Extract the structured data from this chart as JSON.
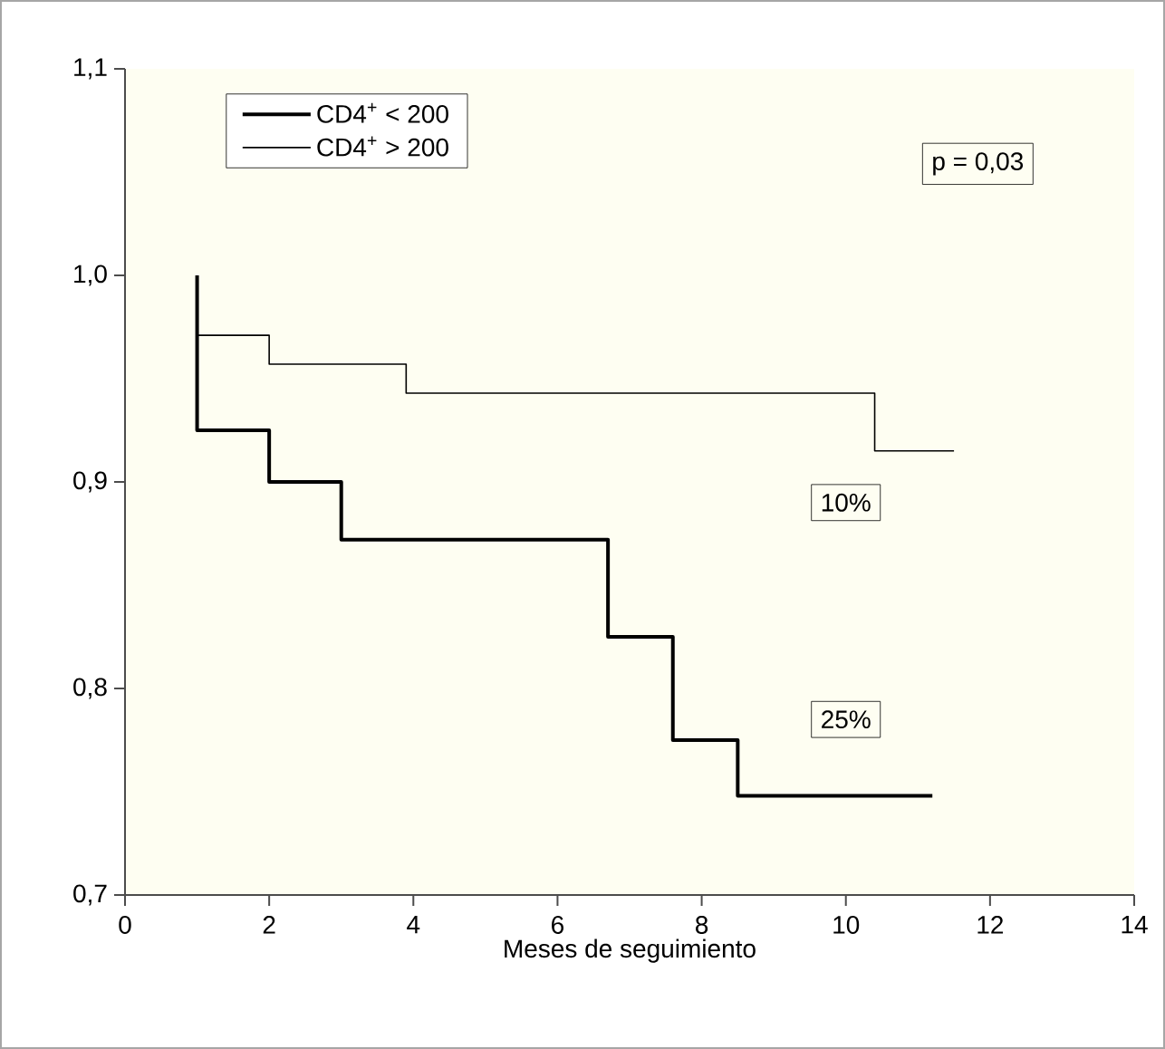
{
  "chart_data": {
    "type": "step",
    "xlabel": "Meses de seguimiento",
    "xlim": [
      0,
      14
    ],
    "ylim": [
      0.7,
      1.1
    ],
    "xticks": [
      0,
      2,
      4,
      6,
      8,
      10,
      12,
      14
    ],
    "yticks": [
      {
        "value": 0.7,
        "label": "0,7"
      },
      {
        "value": 0.8,
        "label": "0,8"
      },
      {
        "value": 0.9,
        "label": "0,9"
      },
      {
        "value": 1.0,
        "label": "1,0"
      },
      {
        "value": 1.1,
        "label": "1,1"
      }
    ],
    "series": [
      {
        "name": "CD4$^{+}$ < 200",
        "color": "#000000",
        "x": [
          1,
          1,
          2,
          3,
          6.7,
          7.6,
          8.5,
          11.2
        ],
        "values": [
          1.0,
          0.925,
          0.9,
          0.872,
          0.825,
          0.775,
          0.748,
          0.748
        ]
      },
      {
        "name": "CD4$^{+}$ > 200",
        "color": "#000000",
        "x": [
          1,
          2,
          3.9,
          10.4,
          11.5
        ],
        "values": [
          0.971,
          0.957,
          0.943,
          0.915,
          0.915
        ]
      }
    ],
    "annotations": [
      "p = 0,03",
      {
        "text": "10%",
        "x": 10.0,
        "y": 0.89
      },
      {
        "text": "25%",
        "x": 10.0,
        "y": 0.785
      }
    ],
    "legend": "top left",
    "grid": false,
    "marker": "none",
    "line_style": "solid"
  }
}
